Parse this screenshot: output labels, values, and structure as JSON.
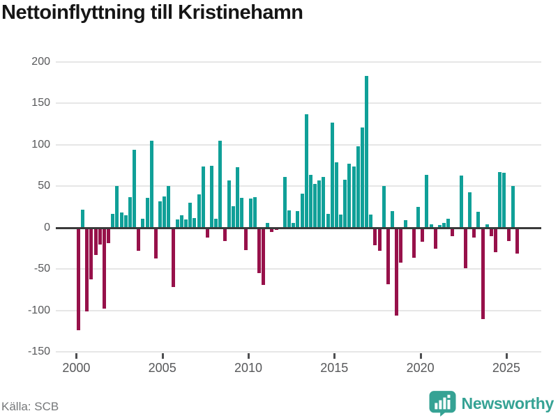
{
  "title": "Nettoinflyttning till Kristinehamn",
  "source": "Källa: SCB",
  "branding": {
    "name": "Newsworthy",
    "icon": "newsworthy-speech-bubble-bar-chart-icon"
  },
  "colors": {
    "positive_bar": "#10a098",
    "negative_bar": "#97114a",
    "brand_teal": "#35a294",
    "grid": "#e6e6e6",
    "zero_line": "#3a3a3a",
    "axis_text": "#57585a",
    "title_text": "#161616",
    "source_text": "#76787a",
    "background": "#ffffff"
  },
  "y_axis": {
    "ticks": [
      200,
      150,
      100,
      50,
      0,
      -50,
      -100,
      -150
    ],
    "min": -150,
    "max": 200
  },
  "x_axis": {
    "ticks": [
      2000,
      2005,
      2010,
      2015,
      2020,
      2025
    ]
  },
  "chart_data": {
    "type": "bar",
    "title": "Nettoinflyttning till Kristinehamn",
    "frequency": "quarterly",
    "start_period": "2000 Q1",
    "end_period": "2025 Q3",
    "ylim": [
      -150,
      200
    ],
    "grid": true,
    "values_by_year": {
      "2000": [
        -124,
        22,
        -101,
        -62
      ],
      "2001": [
        -33,
        -20,
        -98,
        -19
      ],
      "2002": [
        17,
        50,
        18,
        15
      ],
      "2003": [
        37,
        94,
        -28,
        11
      ],
      "2004": [
        36,
        105,
        -37,
        32
      ],
      "2005": [
        38,
        50,
        -72,
        10
      ],
      "2006": [
        15,
        10,
        30,
        12
      ],
      "2007": [
        40,
        74,
        -12,
        75
      ],
      "2008": [
        11,
        105,
        -16,
        57
      ],
      "2009": [
        26,
        73,
        36,
        -27
      ],
      "2010": [
        35,
        37,
        -55,
        -69
      ],
      "2011": [
        6,
        -5,
        -3,
        0
      ],
      "2012": [
        61,
        21,
        6,
        20
      ],
      "2013": [
        41,
        137,
        64,
        53
      ],
      "2014": [
        57,
        61,
        17,
        127
      ],
      "2015": [
        79,
        16,
        58,
        77
      ],
      "2016": [
        74,
        98,
        121,
        183
      ],
      "2017": [
        16,
        -21,
        -28,
        50
      ],
      "2018": [
        -68,
        20,
        -106,
        -42
      ],
      "2019": [
        9,
        0,
        -36,
        25
      ],
      "2020": [
        -17,
        64,
        4,
        -25
      ],
      "2021": [
        3,
        6,
        11,
        -10
      ],
      "2022": [
        0,
        63,
        -49,
        43
      ],
      "2023": [
        -12,
        19,
        -110,
        4
      ],
      "2024": [
        -10,
        -30,
        67,
        66
      ],
      "2025": [
        -16,
        50,
        -31
      ]
    }
  }
}
